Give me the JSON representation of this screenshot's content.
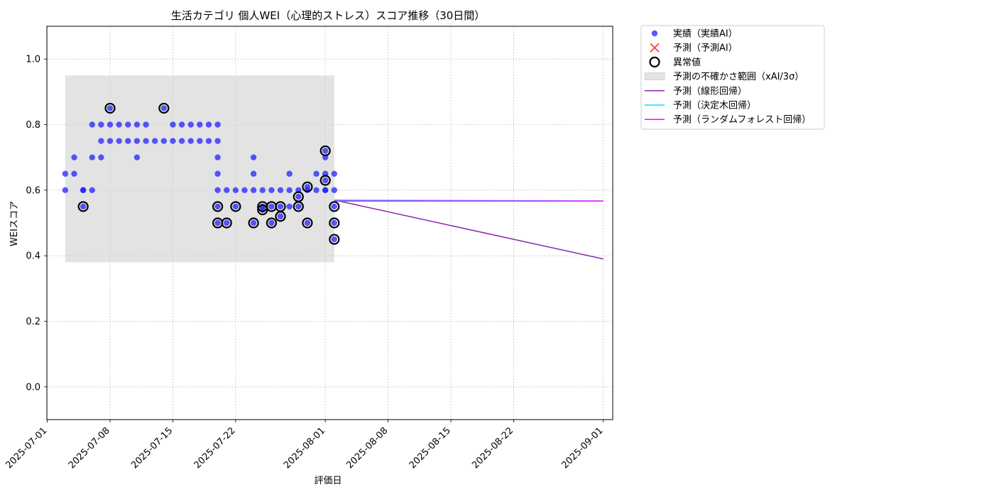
{
  "chart_data": {
    "type": "scatter",
    "title": "生活カテゴリ 個人WEI（心理的ストレス）スコア推移（30日間）",
    "xlabel": "評価日",
    "ylabel": "WEIスコア",
    "xlim": [
      "2025-07-01",
      "2025-09-02"
    ],
    "ylim": [
      -0.1,
      1.1
    ],
    "grid": true,
    "grid_style": "dotted",
    "legend_position": "outside-upper-right",
    "x_ticks": [
      "2025-07-01",
      "2025-07-08",
      "2025-07-15",
      "2025-07-22",
      "2025-08-01",
      "2025-08-08",
      "2025-08-15",
      "2025-08-22",
      "2025-09-01"
    ],
    "y_ticks": [
      "0.0",
      "0.2",
      "0.4",
      "0.6",
      "0.8",
      "1.0"
    ],
    "colors": {
      "actual": "#1a1aff",
      "uncertainty": "#d0d0d0",
      "linear": "#8e24aa",
      "tree": "#00e5ff",
      "forest": "#ff00ff",
      "predicted": "#ff3b3b",
      "anomaly": "#000000"
    },
    "uncertainty_band": {
      "x_start": "2025-07-03",
      "x_end": "2025-08-02",
      "y_low": 0.38,
      "y_high": 0.95
    },
    "series": [
      {
        "name": "実績（実績AI）",
        "marker": "circle",
        "points": [
          [
            "2025-07-03",
            0.6
          ],
          [
            "2025-07-03",
            0.65
          ],
          [
            "2025-07-04",
            0.65
          ],
          [
            "2025-07-04",
            0.7
          ],
          [
            "2025-07-05",
            0.6
          ],
          [
            "2025-07-05",
            0.55
          ],
          [
            "2025-07-05",
            0.6
          ],
          [
            "2025-07-06",
            0.7
          ],
          [
            "2025-07-06",
            0.6
          ],
          [
            "2025-07-06",
            0.8
          ],
          [
            "2025-07-07",
            0.75
          ],
          [
            "2025-07-07",
            0.7
          ],
          [
            "2025-07-07",
            0.8
          ],
          [
            "2025-07-08",
            0.75
          ],
          [
            "2025-07-08",
            0.8
          ],
          [
            "2025-07-08",
            0.85
          ],
          [
            "2025-07-09",
            0.75
          ],
          [
            "2025-07-09",
            0.8
          ],
          [
            "2025-07-10",
            0.75
          ],
          [
            "2025-07-10",
            0.8
          ],
          [
            "2025-07-11",
            0.75
          ],
          [
            "2025-07-11",
            0.8
          ],
          [
            "2025-07-11",
            0.7
          ],
          [
            "2025-07-12",
            0.75
          ],
          [
            "2025-07-12",
            0.8
          ],
          [
            "2025-07-13",
            0.75
          ],
          [
            "2025-07-14",
            0.85
          ],
          [
            "2025-07-14",
            0.75
          ],
          [
            "2025-07-15",
            0.8
          ],
          [
            "2025-07-15",
            0.75
          ],
          [
            "2025-07-16",
            0.75
          ],
          [
            "2025-07-16",
            0.8
          ],
          [
            "2025-07-17",
            0.8
          ],
          [
            "2025-07-17",
            0.75
          ],
          [
            "2025-07-18",
            0.8
          ],
          [
            "2025-07-18",
            0.75
          ],
          [
            "2025-07-19",
            0.8
          ],
          [
            "2025-07-19",
            0.75
          ],
          [
            "2025-07-20",
            0.8
          ],
          [
            "2025-07-20",
            0.75
          ],
          [
            "2025-07-20",
            0.7
          ],
          [
            "2025-07-20",
            0.65
          ],
          [
            "2025-07-20",
            0.6
          ],
          [
            "2025-07-20",
            0.55
          ],
          [
            "2025-07-20",
            0.5
          ],
          [
            "2025-07-21",
            0.6
          ],
          [
            "2025-07-21",
            0.5
          ],
          [
            "2025-07-22",
            0.55
          ],
          [
            "2025-07-22",
            0.6
          ],
          [
            "2025-07-23",
            0.6
          ],
          [
            "2025-07-24",
            0.65
          ],
          [
            "2025-07-24",
            0.7
          ],
          [
            "2025-07-24",
            0.6
          ],
          [
            "2025-07-24",
            0.5
          ],
          [
            "2025-07-25",
            0.6
          ],
          [
            "2025-07-25",
            0.55
          ],
          [
            "2025-07-25",
            0.54
          ],
          [
            "2025-07-26",
            0.6
          ],
          [
            "2025-07-26",
            0.55
          ],
          [
            "2025-07-26",
            0.5
          ],
          [
            "2025-07-27",
            0.52
          ],
          [
            "2025-07-27",
            0.55
          ],
          [
            "2025-07-27",
            0.6
          ],
          [
            "2025-07-28",
            0.6
          ],
          [
            "2025-07-28",
            0.65
          ],
          [
            "2025-07-28",
            0.55
          ],
          [
            "2025-07-29",
            0.58
          ],
          [
            "2025-07-29",
            0.6
          ],
          [
            "2025-07-29",
            0.55
          ],
          [
            "2025-07-30",
            0.61
          ],
          [
            "2025-07-30",
            0.5
          ],
          [
            "2025-07-30",
            0.6
          ],
          [
            "2025-07-31",
            0.6
          ],
          [
            "2025-07-31",
            0.65
          ],
          [
            "2025-08-01",
            0.6
          ],
          [
            "2025-08-01",
            0.7
          ],
          [
            "2025-08-01",
            0.6
          ],
          [
            "2025-08-01",
            0.63
          ],
          [
            "2025-08-01",
            0.65
          ],
          [
            "2025-08-01",
            0.72
          ],
          [
            "2025-08-02",
            0.6
          ],
          [
            "2025-08-02",
            0.65
          ],
          [
            "2025-08-02",
            0.55
          ],
          [
            "2025-08-02",
            0.5
          ],
          [
            "2025-08-02",
            0.45
          ]
        ]
      },
      {
        "name": "予測（予測AI）",
        "marker": "x",
        "points": []
      },
      {
        "name": "異常値",
        "marker": "ring",
        "points": [
          [
            "2025-07-05",
            0.55
          ],
          [
            "2025-07-08",
            0.85
          ],
          [
            "2025-07-14",
            0.85
          ],
          [
            "2025-07-20",
            0.55
          ],
          [
            "2025-07-20",
            0.5
          ],
          [
            "2025-07-21",
            0.5
          ],
          [
            "2025-07-22",
            0.55
          ],
          [
            "2025-07-24",
            0.5
          ],
          [
            "2025-07-25",
            0.55
          ],
          [
            "2025-07-25",
            0.54
          ],
          [
            "2025-07-26",
            0.5
          ],
          [
            "2025-07-26",
            0.55
          ],
          [
            "2025-07-27",
            0.52
          ],
          [
            "2025-07-27",
            0.55
          ],
          [
            "2025-07-29",
            0.58
          ],
          [
            "2025-07-29",
            0.55
          ],
          [
            "2025-07-30",
            0.61
          ],
          [
            "2025-07-30",
            0.5
          ],
          [
            "2025-08-01",
            0.63
          ],
          [
            "2025-08-01",
            0.72
          ],
          [
            "2025-08-02",
            0.55
          ],
          [
            "2025-08-02",
            0.5
          ],
          [
            "2025-08-02",
            0.45
          ]
        ]
      },
      {
        "name": "予測の不確かさ範囲（xAI/3σ）",
        "marker": "band",
        "points": []
      },
      {
        "name": "予測（線形回帰）",
        "marker": "line",
        "points": [
          [
            "2025-08-02",
            0.57
          ],
          [
            "2025-09-01",
            0.39
          ]
        ]
      },
      {
        "name": "予測（決定木回帰）",
        "marker": "line",
        "points": [
          [
            "2025-08-02",
            0.57
          ],
          [
            "2025-09-01",
            0.567
          ]
        ]
      },
      {
        "name": "予測（ランダムフォレスト回帰）",
        "marker": "line",
        "points": [
          [
            "2025-08-02",
            0.567
          ],
          [
            "2025-09-01",
            0.567
          ]
        ]
      }
    ]
  }
}
